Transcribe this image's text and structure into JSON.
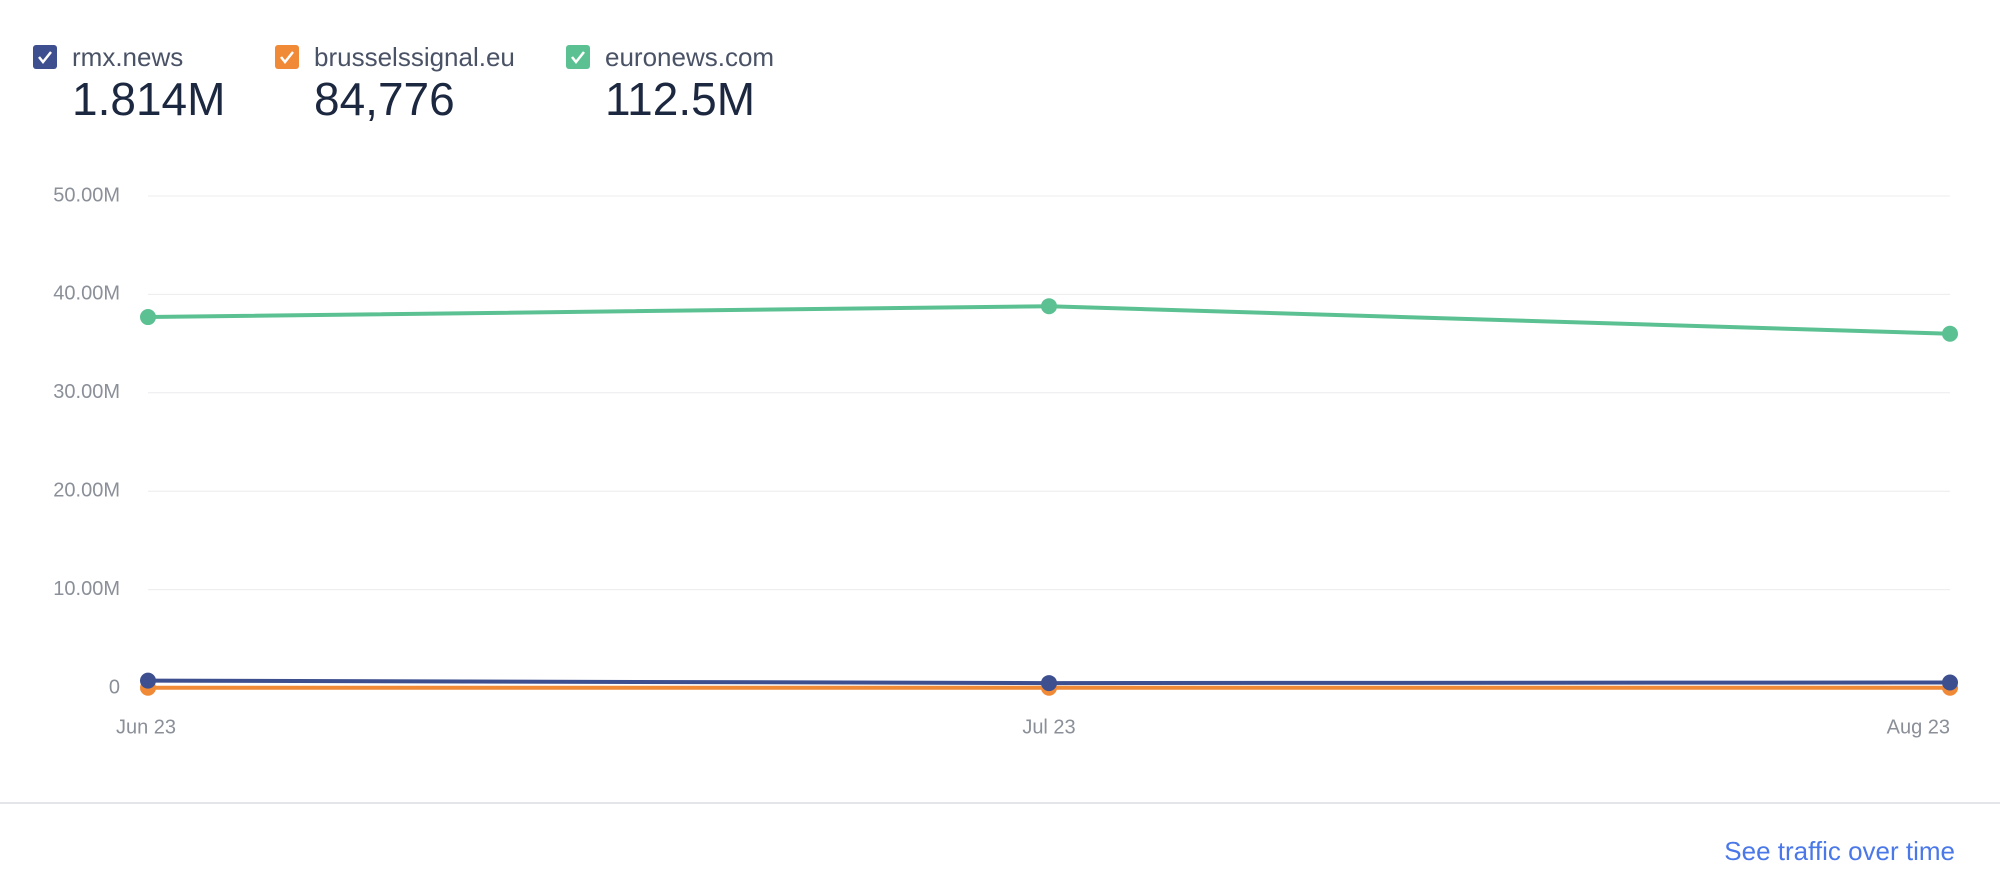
{
  "chart_data": {
    "type": "line",
    "categories": [
      "Jun 23",
      "Jul 23",
      "Aug 23"
    ],
    "series": [
      {
        "name": "rmx.news",
        "total": "1.814M",
        "color": "#3d4f8f",
        "values": [
          750000,
          500000,
          560000
        ]
      },
      {
        "name": "brusselssignal.eu",
        "total": "84,776",
        "color": "#f08a36",
        "values": [
          28000,
          28000,
          28000
        ]
      },
      {
        "name": "euronews.com",
        "total": "112.5M",
        "color": "#5cc192",
        "values": [
          37700000,
          38800000,
          36000000
        ]
      }
    ],
    "ylim": [
      0,
      50000000
    ],
    "yticks": [
      0,
      {
        "value": 10000000,
        "label": "10.00M"
      },
      {
        "value": 20000000,
        "label": "20.00M"
      },
      {
        "value": 30000000,
        "label": "30.00M"
      },
      {
        "value": 40000000,
        "label": "40.00M"
      },
      {
        "value": 50000000,
        "label": "50.00M"
      }
    ],
    "grid": true
  },
  "footer": {
    "link": "See traffic over time"
  }
}
